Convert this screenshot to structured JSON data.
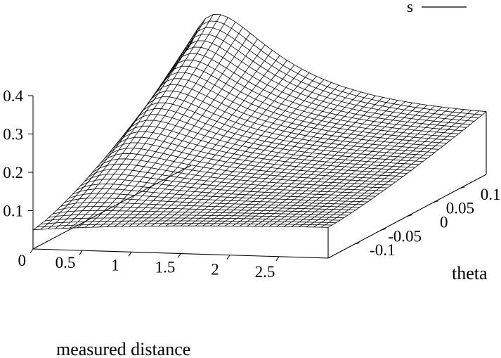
{
  "chart_data": {
    "type": "surface",
    "title": "",
    "xlabel": "measured distance",
    "ylabel": "theta",
    "zlabel": "",
    "xlim": [
      0,
      3
    ],
    "ylim": [
      -0.15,
      0.15
    ],
    "zlim": [
      0,
      0.4
    ],
    "x_ticks": [
      "0",
      "0.5",
      "1",
      "1.5",
      "2",
      "2.5"
    ],
    "y_ticks": [
      "-0.1",
      "-0.05",
      "0",
      "0.05",
      "0.1"
    ],
    "z_ticks": [
      "0.1",
      "0.2",
      "0.3",
      "0.4"
    ],
    "legend": {
      "label": "s",
      "position": "top-right"
    },
    "grid": "mesh 40x40",
    "z_reference_points": [
      {
        "x": 0,
        "y": 0.15,
        "z": 0.4
      },
      {
        "x": 0,
        "y": -0.15,
        "z": 0.05
      },
      {
        "x": 3,
        "y": 0.15,
        "z": 0.22
      },
      {
        "x": 3,
        "y": -0.15,
        "z": 0.085
      }
    ],
    "line_color": "#000000"
  }
}
